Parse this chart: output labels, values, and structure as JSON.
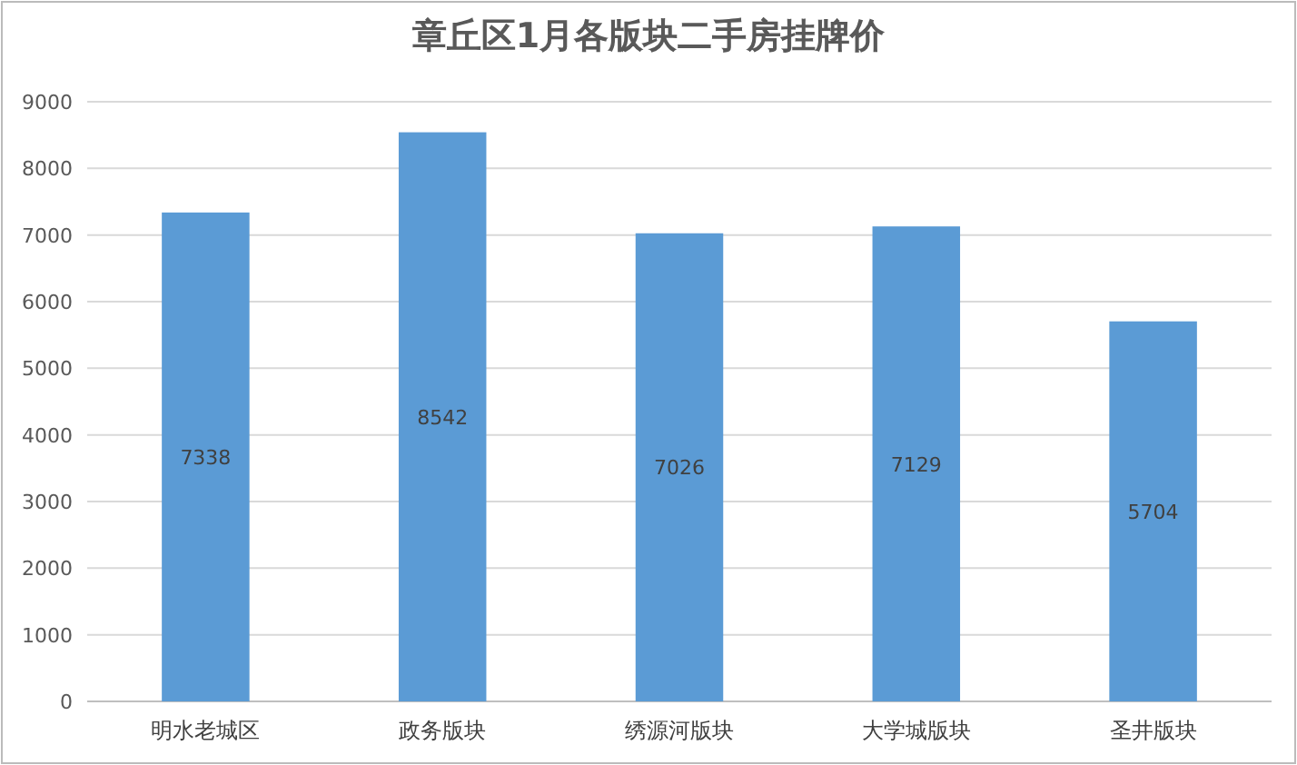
{
  "chart_data": {
    "type": "bar",
    "title": "章丘区1月各版块二手房挂牌价",
    "categories": [
      "明水老城区",
      "政务版块",
      "绣源河版块",
      "大学城版块",
      "圣井版块"
    ],
    "values": [
      7338,
      8542,
      7026,
      7129,
      5704
    ],
    "color": "#5b9bd5",
    "ylim": [
      0,
      9000
    ],
    "yticks": [
      0,
      1000,
      2000,
      3000,
      4000,
      5000,
      6000,
      7000,
      8000,
      9000
    ],
    "grid": "y",
    "data_labels": true
  }
}
